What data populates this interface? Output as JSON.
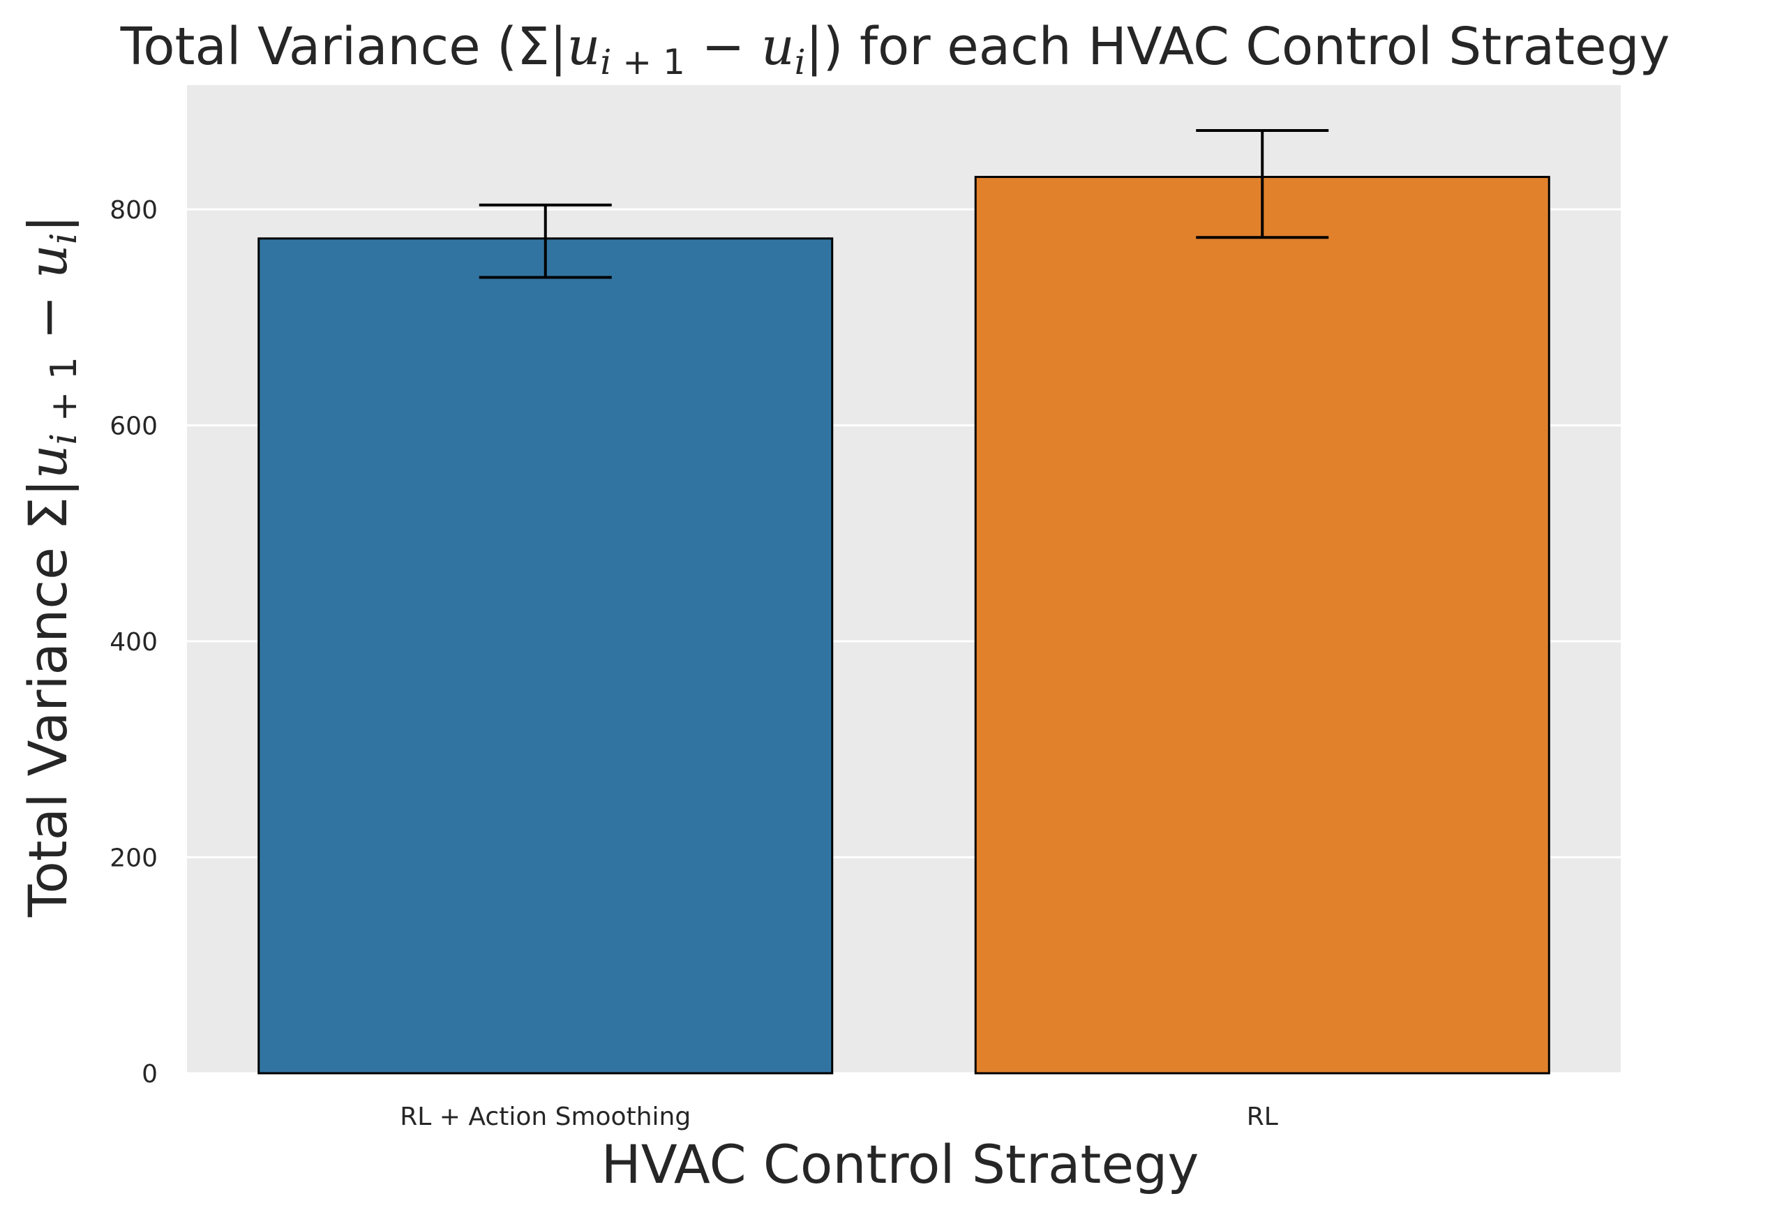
{
  "chart_data": {
    "type": "bar",
    "title": "Total Variance (Σ|uᵢ₊₁ − uᵢ|) for each HVAC Control Strategy",
    "xlabel": "HVAC Control Strategy",
    "ylabel": "Total Variance Σ|uᵢ₊₁ − uᵢ|",
    "categories": [
      "RL + Action Smoothing",
      "RL"
    ],
    "values": [
      773,
      830
    ],
    "error_low": [
      737,
      774
    ],
    "error_high": [
      804,
      873
    ],
    "ylim": [
      0,
      915
    ],
    "yticks": [
      0,
      200,
      400,
      600,
      800
    ],
    "grid": true,
    "colors": {
      "background": "#EAEAEA",
      "grid": "#FFFFFF",
      "bar_edge": "#000000",
      "error_bar": "#000000",
      "bars": [
        "#3274A1",
        "#E1812C"
      ]
    }
  }
}
